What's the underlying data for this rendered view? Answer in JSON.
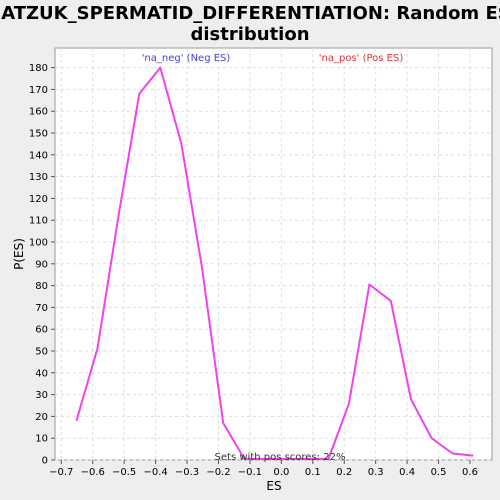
{
  "chart_data": {
    "type": "line",
    "title_line1": "MATZUK_SPERMATID_DIFFERENTIATION: Random ES",
    "title_line2": "distribution",
    "xlabel": "ES",
    "ylabel": "P(ES)",
    "xlim": [
      -0.72,
      0.67
    ],
    "ylim": [
      0,
      189
    ],
    "x_ticks": [
      -0.7,
      -0.6,
      -0.5,
      -0.4,
      -0.3,
      -0.2,
      -0.1,
      0.0,
      0.1,
      0.2,
      0.3,
      0.4,
      0.5,
      0.6
    ],
    "x_tick_labels": [
      "−0.7",
      "−0.6",
      "−0.5",
      "−0.4",
      "−0.3",
      "−0.2",
      "−0.1",
      "0.0",
      "0.1",
      "0.2",
      "0.3",
      "0.4",
      "0.5",
      "0.6"
    ],
    "y_ticks": [
      0,
      10,
      20,
      30,
      40,
      50,
      60,
      70,
      80,
      90,
      100,
      110,
      120,
      130,
      140,
      150,
      160,
      170,
      180
    ],
    "grid": true,
    "series": [
      {
        "color": "#ee44ee",
        "x": [
          -0.652,
          -0.585,
          -0.518,
          -0.452,
          -0.385,
          -0.318,
          -0.252,
          -0.185,
          -0.118,
          0.15,
          0.215,
          0.28,
          0.348,
          0.412,
          0.478,
          0.545,
          0.61
        ],
        "y": [
          18,
          51,
          112,
          168,
          180,
          145,
          88,
          17,
          0.5,
          0.5,
          26,
          80.5,
          73,
          28,
          10,
          3,
          2
        ]
      }
    ],
    "annotations": {
      "neg_label": "'na_neg' (Neg ES)",
      "neg_color": "#4444cc",
      "pos_label": "'na_pos' (Pos ES)",
      "pos_color": "#dd3333",
      "footer": "Sets with pos scores: 22%"
    }
  }
}
